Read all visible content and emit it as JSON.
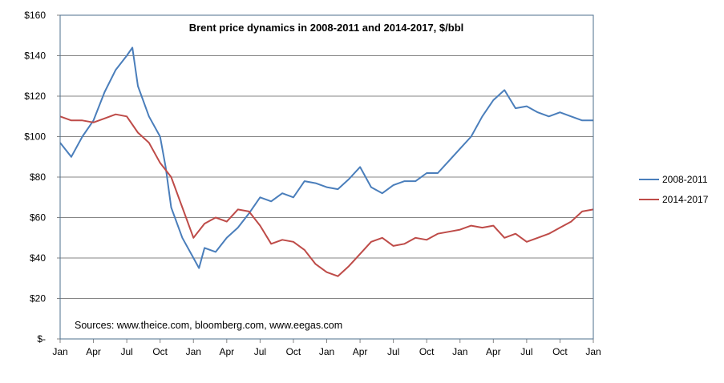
{
  "chart_data": {
    "type": "line",
    "title": "Brent price dynamics in 2008-2011 and 2014-2017, $/bbl",
    "annotation": "Sources: www.theice.com, bloomberg.com, www.eegas.com",
    "xlabel": "",
    "ylabel": "",
    "ylim": [
      0,
      160
    ],
    "xlim_months": [
      0,
      48
    ],
    "y_ticks": [
      {
        "value": 0,
        "label": "$-"
      },
      {
        "value": 20,
        "label": "$20"
      },
      {
        "value": 40,
        "label": "$40"
      },
      {
        "value": 60,
        "label": "$60"
      },
      {
        "value": 80,
        "label": "$80"
      },
      {
        "value": 100,
        "label": "$100"
      },
      {
        "value": 120,
        "label": "$120"
      },
      {
        "value": 140,
        "label": "$140"
      },
      {
        "value": 160,
        "label": "$160"
      }
    ],
    "x_ticks": [
      "Jan",
      "Apr",
      "Jul",
      "Oct",
      "Jan",
      "Apr",
      "Jul",
      "Oct",
      "Jan",
      "Apr",
      "Jul",
      "Oct",
      "Jan",
      "Apr",
      "Jul",
      "Oct",
      "Jan"
    ],
    "grid": true,
    "legend_position": "right",
    "series": [
      {
        "name": "2008-2011",
        "color": "#4a7ebb",
        "x_months": [
          0,
          1,
          2,
          3,
          4,
          5,
          6,
          6.5,
          7,
          8,
          9,
          9.5,
          10,
          11,
          12,
          12.5,
          13,
          14,
          15,
          16,
          17,
          18,
          19,
          20,
          21,
          22,
          23,
          24,
          25,
          26,
          27,
          28,
          29,
          30,
          31,
          32,
          33,
          34,
          35,
          36,
          37,
          38,
          39,
          40,
          41,
          42,
          43,
          44,
          45,
          46,
          47,
          48
        ],
        "values": [
          97,
          90,
          100,
          108,
          122,
          133,
          140,
          144,
          125,
          110,
          100,
          85,
          65,
          50,
          40,
          35,
          45,
          43,
          50,
          55,
          62,
          70,
          68,
          72,
          70,
          78,
          77,
          75,
          74,
          79,
          85,
          75,
          72,
          76,
          78,
          78,
          82,
          82,
          88,
          94,
          100,
          110,
          118,
          123,
          114,
          115,
          112,
          110,
          112,
          110,
          108,
          108
        ]
      },
      {
        "name": "2014-2017",
        "color": "#be4b48",
        "x_months": [
          0,
          1,
          2,
          3,
          4,
          5,
          6,
          7,
          8,
          9,
          10,
          11,
          12,
          13,
          14,
          15,
          16,
          17,
          18,
          19,
          20,
          21,
          22,
          23,
          24,
          25,
          26,
          27,
          28,
          29,
          30,
          31,
          32,
          33,
          34,
          35,
          36,
          37,
          38,
          39,
          40,
          41,
          42,
          43,
          44,
          45,
          46,
          47,
          48
        ],
        "values": [
          110,
          108,
          108,
          107,
          109,
          111,
          110,
          102,
          97,
          87,
          80,
          65,
          50,
          57,
          60,
          58,
          64,
          63,
          56,
          47,
          49,
          48,
          44,
          37,
          33,
          31,
          36,
          42,
          48,
          50,
          46,
          47,
          50,
          49,
          52,
          53,
          54,
          56,
          55,
          56,
          50,
          52,
          48,
          50,
          52,
          55,
          58,
          63,
          64
        ]
      }
    ]
  }
}
